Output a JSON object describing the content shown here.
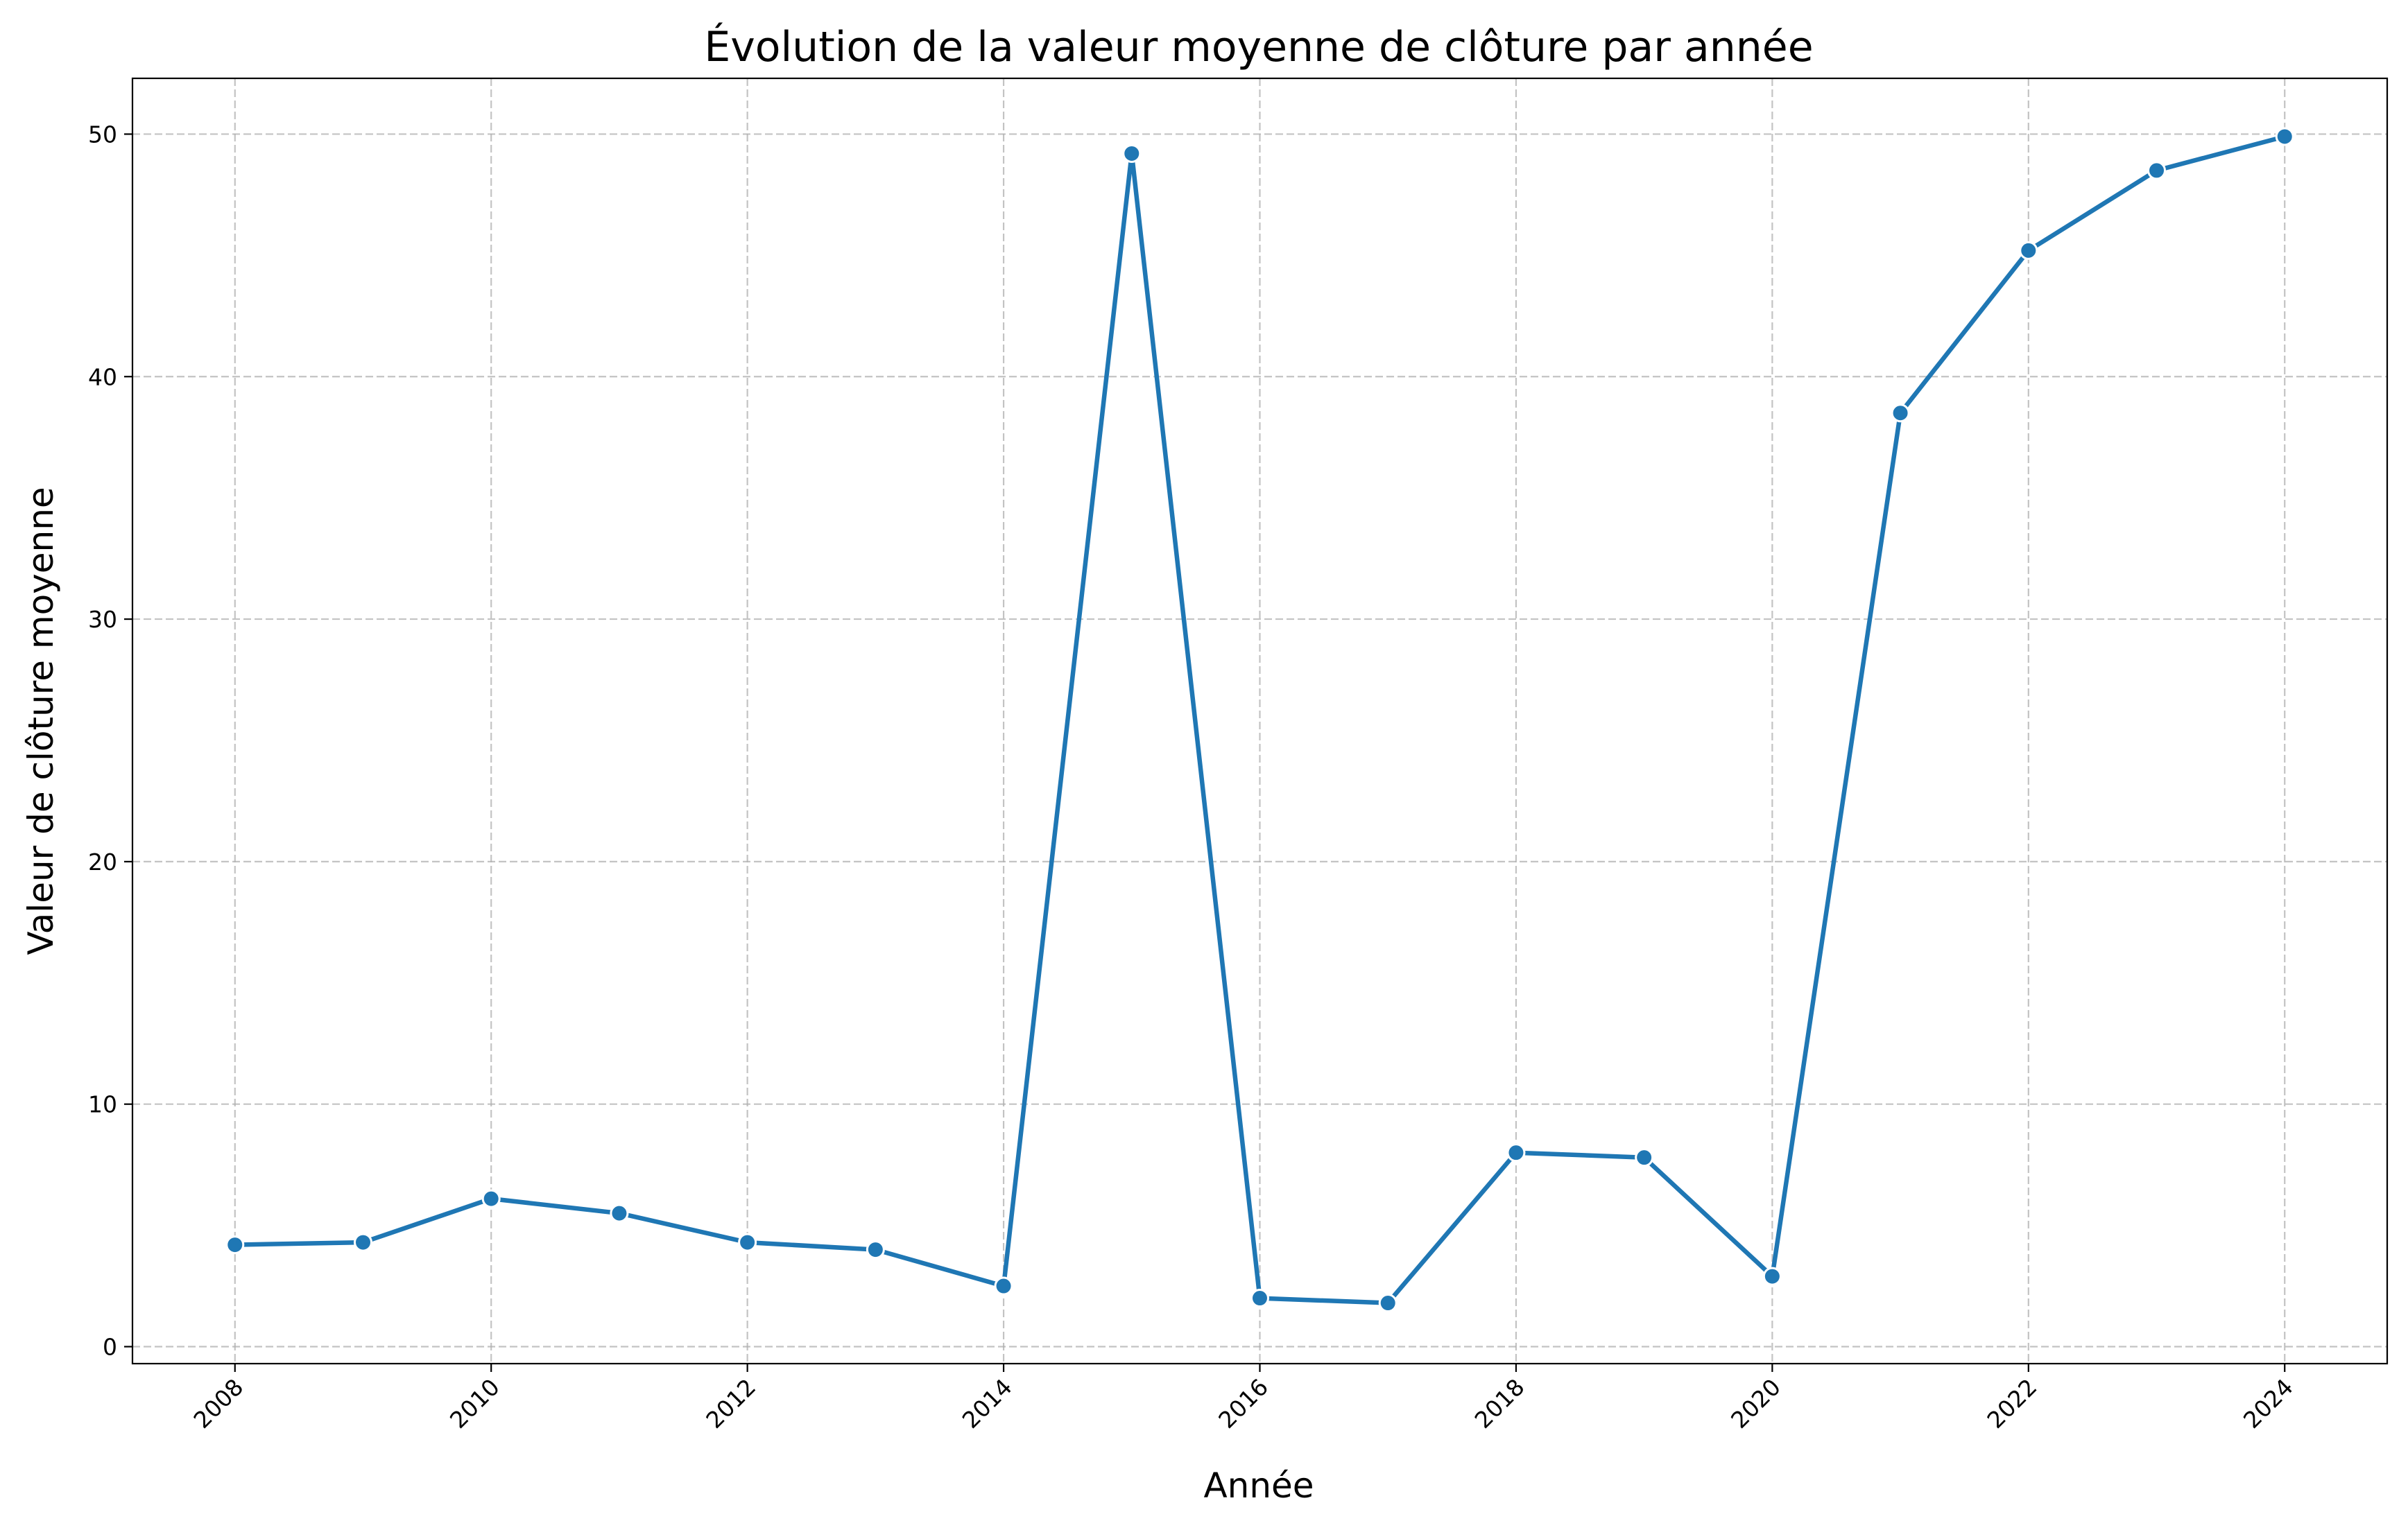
{
  "chart_data": {
    "type": "line",
    "title": "Évolution de la valeur moyenne de clôture par année",
    "xlabel": "Année",
    "ylabel": "Valeur de clôture moyenne",
    "xlim": [
      2007.2,
      2024.8
    ],
    "ylim": [
      -0.7,
      52.3
    ],
    "x_ticks": [
      2008,
      2010,
      2012,
      2014,
      2016,
      2018,
      2020,
      2022,
      2024
    ],
    "x_tick_labels": [
      "2008",
      "2010",
      "2012",
      "2014",
      "2016",
      "2018",
      "2020",
      "2022",
      "2024"
    ],
    "y_ticks": [
      0,
      10,
      20,
      30,
      40,
      50
    ],
    "y_tick_labels": [
      "0",
      "10",
      "20",
      "30",
      "40",
      "50"
    ],
    "grid": true,
    "legend": "none",
    "line_color": "#1f77b4",
    "marker": "circle",
    "series": [
      {
        "x": [
          2008,
          2009,
          2010,
          2011,
          2012,
          2013,
          2014,
          2015,
          2016,
          2017,
          2018,
          2019,
          2020,
          2021,
          2022,
          2023,
          2024
        ],
        "y": [
          4.2,
          4.3,
          6.1,
          5.5,
          4.3,
          4.0,
          2.5,
          49.2,
          2.0,
          1.8,
          8.0,
          7.8,
          2.9,
          38.5,
          45.2,
          48.5,
          49.9
        ]
      }
    ]
  }
}
